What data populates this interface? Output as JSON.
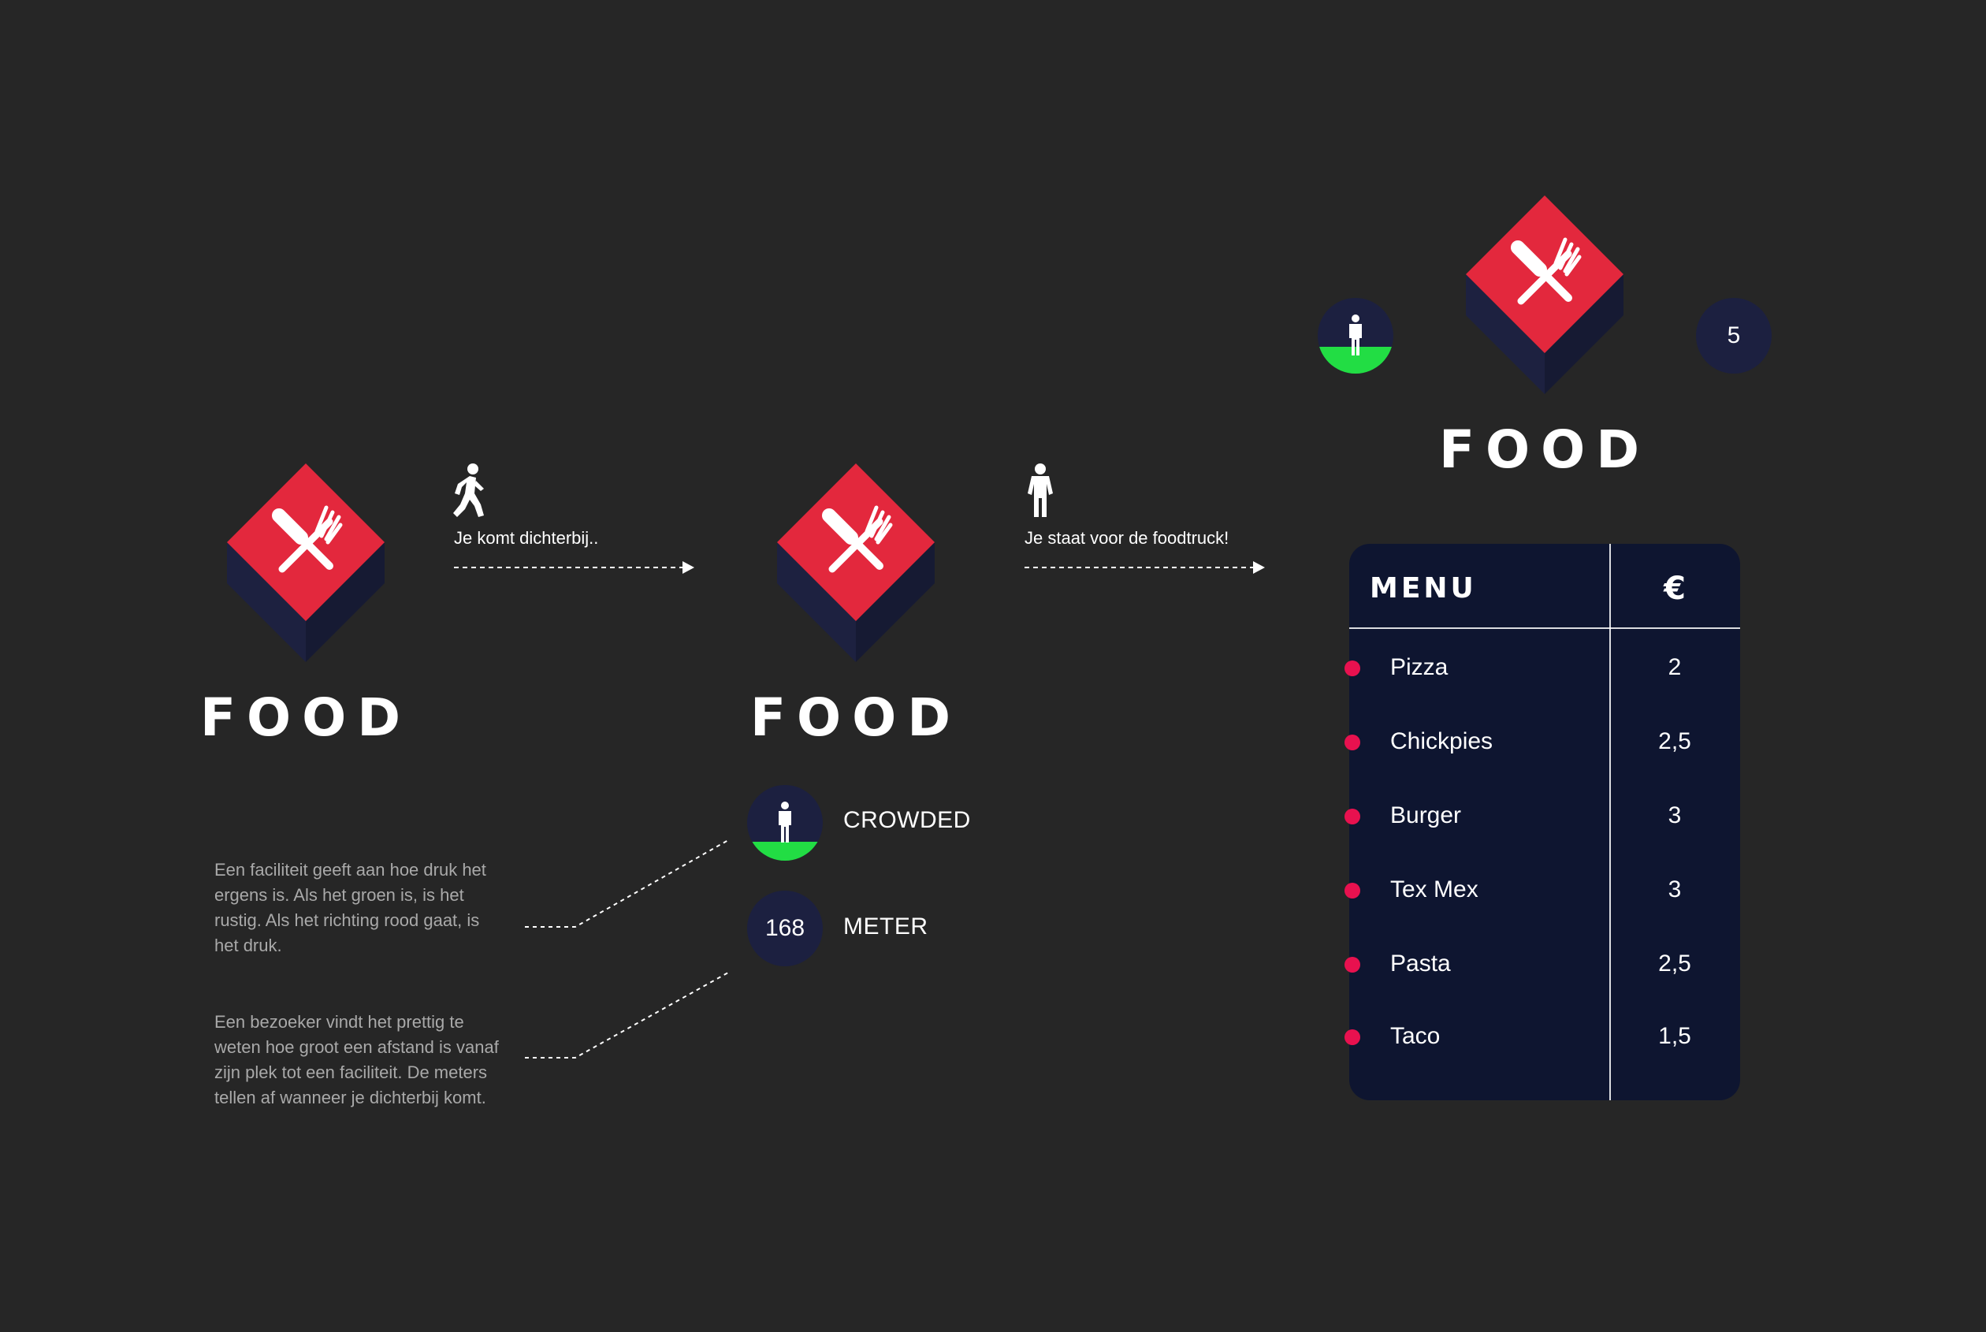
{
  "colors": {
    "background": "#262626",
    "sign_red": "#e3283d",
    "sign_navy": "#1d2140",
    "indicator_navy": "#1c2040",
    "crowd_green": "#22dd44",
    "menu_panel": "#0e1530",
    "menu_bullet": "#e8114f",
    "description_gray": "#a9a9a9"
  },
  "icons": {
    "sign": "knife-and-fork-icon",
    "walking": "walking-person-icon",
    "standing": "standing-person-icon",
    "crowd": "person-icon"
  },
  "stage_1": {
    "word": "FOOD"
  },
  "step_1": {
    "caption": "Je komt dichterbij.."
  },
  "stage_2": {
    "word": "FOOD",
    "crowd_label": "CROWDED",
    "distance_value": "168",
    "distance_label": "METER",
    "crowd_level": 0.25
  },
  "step_2": {
    "caption": "Je staat voor de foodtruck!"
  },
  "stage_3": {
    "word": "FOOD",
    "distance_value": "5",
    "crowd_level": 0.35
  },
  "descriptions": {
    "crowd_text": "Een faciliteit geeft aan hoe druk het ergens is. Als het groen is, is het rustig. Als het richting rood gaat, is het druk.",
    "distance_text": "Een bezoeker vindt het prettig te weten hoe groot een afstand is vanaf zijn plek tot een faciliteit. De meters tellen af wanneer je dichterbij komt."
  },
  "menu": {
    "title": "MENU",
    "currency": "€",
    "items": [
      {
        "name": "Pizza",
        "price": "2"
      },
      {
        "name": "Chickpies",
        "price": "2,5"
      },
      {
        "name": "Burger",
        "price": "3"
      },
      {
        "name": "Tex Mex",
        "price": "3"
      },
      {
        "name": "Pasta",
        "price": "2,5"
      },
      {
        "name": "Taco",
        "price": "1,5"
      }
    ]
  }
}
